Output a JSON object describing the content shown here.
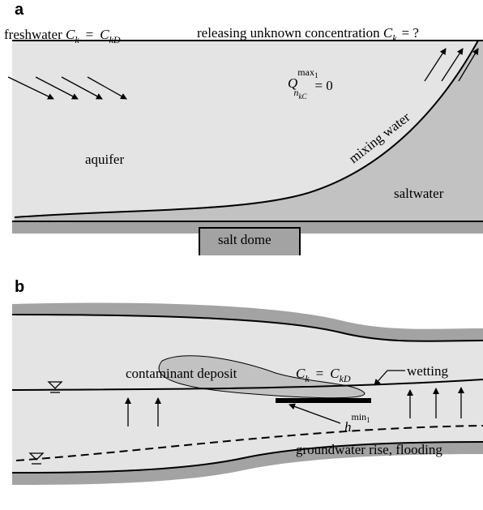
{
  "panel_a": {
    "label": "a",
    "freshwater": "freshwater",
    "freshwater_formula": {
      "lhs": "C",
      "lhs_sub": "k",
      "eq": "=",
      "rhs": "C",
      "rhs_sub": "kD"
    },
    "releasing": "releasing unknown concentration",
    "releasing_formula": {
      "lhs": "C",
      "lhs_sub": "k",
      "eq": "= ?"
    },
    "q_formula": {
      "base": "Q",
      "sup": "max",
      "sup_sub": "1",
      "sub": "n",
      "sub_sub": "kC",
      "eq": "= 0"
    },
    "aquifer": "aquifer",
    "mixing_water": "mixing water",
    "saltwater": "saltwater",
    "salt_dome": "salt dome"
  },
  "panel_b": {
    "label": "b",
    "contaminant_deposit": "contaminant deposit",
    "deposit_formula": {
      "lhs": "C",
      "lhs_sub": "k",
      "eq": "=",
      "rhs": "C",
      "rhs_sub": "kD"
    },
    "wetting": "wetting",
    "h_formula": {
      "base": "h",
      "sup": "min",
      "sup_sub": "1"
    },
    "groundwater_rise": "groundwater rise, flooding"
  }
}
